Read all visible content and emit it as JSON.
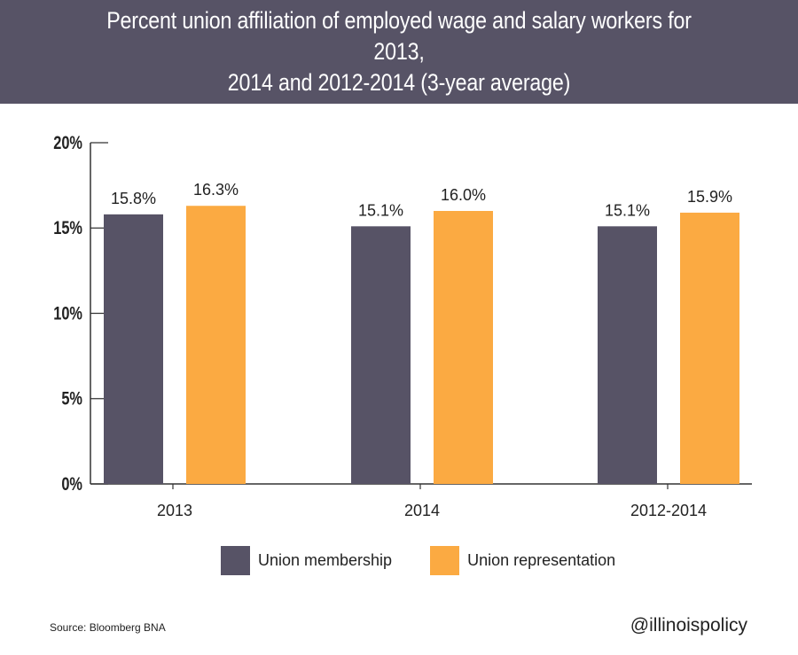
{
  "header": {
    "title_line1": "Percent union affiliation of employed wage and salary workers for 2013,",
    "title_line2": "2014 and 2012-2014 (3-year average)"
  },
  "chart_data": {
    "type": "bar",
    "title": "Percent union affiliation of employed wage and salary workers for 2013, 2014 and 2012-2014 (3-year average)",
    "categories": [
      "2013",
      "2014",
      "2012-2014"
    ],
    "series": [
      {
        "name": "Union membership",
        "values": [
          15.8,
          15.1,
          15.1
        ],
        "labels": [
          "15.8%",
          "15.1%",
          "15.1%"
        ],
        "color": "#575366"
      },
      {
        "name": "Union representation",
        "values": [
          16.3,
          16.0,
          15.9
        ],
        "labels": [
          "16.3%",
          "16.0%",
          "15.9%"
        ],
        "color": "#FBAA42"
      }
    ],
    "ylim": [
      0,
      20
    ],
    "yticks": [
      0,
      5,
      10,
      15,
      20
    ],
    "ytick_labels": [
      "0%",
      "5%",
      "10%",
      "15%",
      "20%"
    ],
    "xlabel": "",
    "ylabel": "",
    "grid": false,
    "legend_position": "bottom"
  },
  "legend": {
    "items": [
      {
        "label": "Union membership",
        "color": "#575366"
      },
      {
        "label": "Union representation",
        "color": "#FBAA42"
      }
    ]
  },
  "footer": {
    "source": "Source: Bloomberg BNA",
    "handle": "@illinoispolicy"
  }
}
